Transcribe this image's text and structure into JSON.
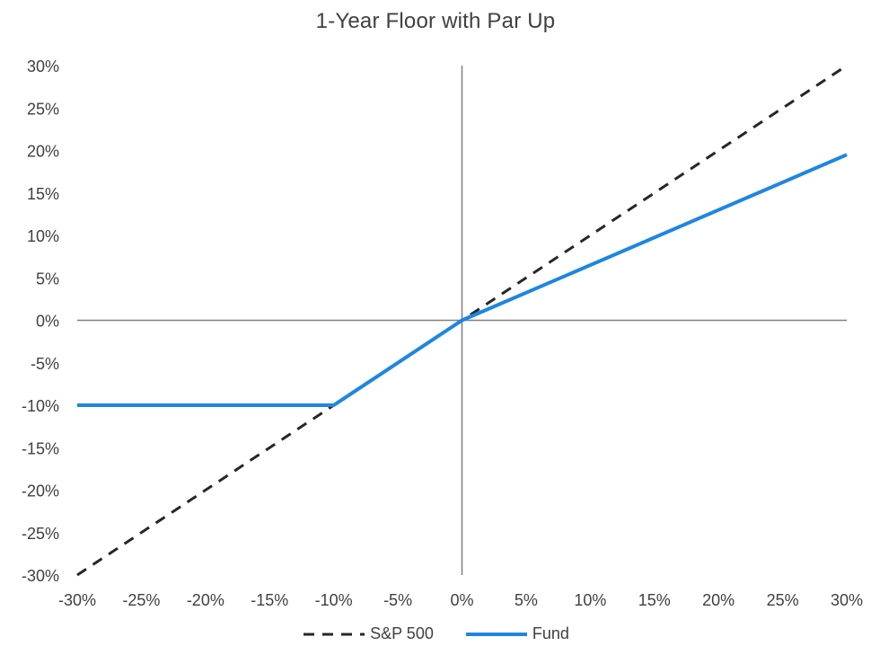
{
  "chart_data": {
    "type": "line",
    "title": "1-Year Floor with Par Up",
    "xlabel": "",
    "ylabel": "",
    "xlim": [
      -30,
      30
    ],
    "ylim": [
      -30,
      30
    ],
    "x_ticks": [
      "-30%",
      "-25%",
      "-20%",
      "-15%",
      "-10%",
      "-5%",
      "0%",
      "5%",
      "10%",
      "15%",
      "20%",
      "25%",
      "30%"
    ],
    "y_ticks": [
      "30%",
      "25%",
      "20%",
      "15%",
      "10%",
      "5%",
      "0%",
      "-5%",
      "-10%",
      "-15%",
      "-20%",
      "-25%",
      "-30%"
    ],
    "grid": false,
    "legend_position": "bottom",
    "series": [
      {
        "name": "S&P 500",
        "style": "dashed",
        "color": "#262626",
        "x": [
          -30,
          30
        ],
        "y": [
          -30,
          30
        ]
      },
      {
        "name": "Fund",
        "style": "solid",
        "color": "#1e86e0",
        "x": [
          -30,
          -10,
          0,
          30
        ],
        "y": [
          -10,
          -10,
          0,
          19.5
        ]
      }
    ]
  }
}
